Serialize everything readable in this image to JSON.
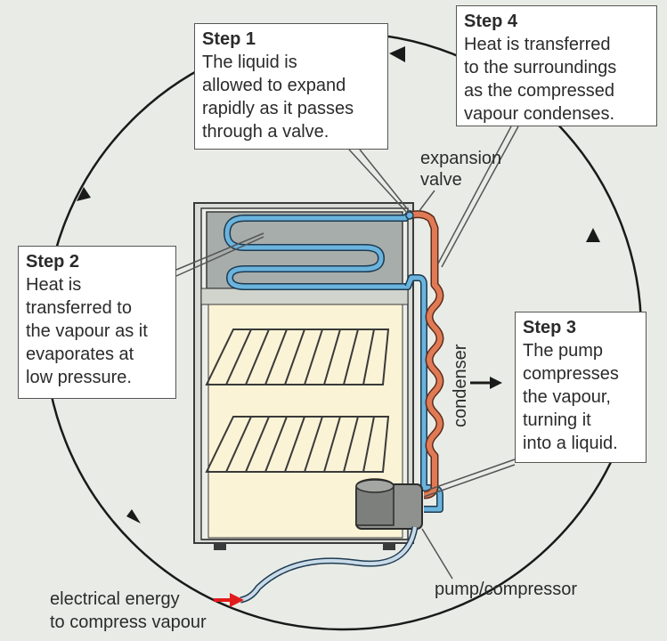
{
  "step1": {
    "title": "Step 1",
    "body": "The liquid is\nallowed to expand\nrapidly as it passes\nthrough a valve."
  },
  "step2": {
    "title": "Step 2",
    "body": "Heat is\ntransferred to\nthe vapour as it\nevaporates at\nlow pressure."
  },
  "step3": {
    "title": "Step 3",
    "body": "The pump\ncompresses\nthe vapour,\nturning it\ninto a liquid."
  },
  "step4": {
    "title": "Step 4",
    "body": "Heat is transferred\nto the surroundings\nas the compressed\nvapour condenses."
  },
  "labels": {
    "expansion_valve": "expansion\nvalve",
    "condenser": "condenser",
    "pump": "pump/compressor",
    "electrical": "electrical energy\nto compress vapour"
  },
  "colors": {
    "background": "#e9ece6",
    "cold_pipe": "#6ab4dd",
    "hot_pipe": "#e07a55",
    "fridge_interior": "#fbf3d6",
    "cycle_line": "#1a1a1a",
    "energy_arrow": "#e21b1b"
  }
}
